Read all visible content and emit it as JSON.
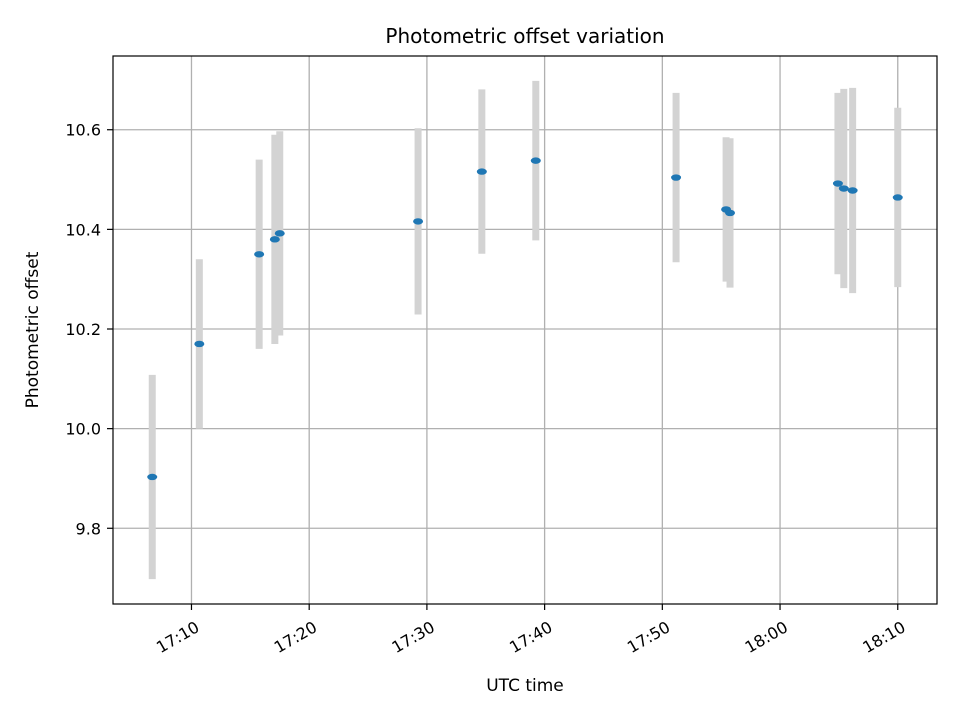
{
  "chart_data": {
    "type": "scatter",
    "title": "Photometric offset variation",
    "xlabel": "UTC time",
    "ylabel": "Photometric offset",
    "x_ticks": [
      "17:10",
      "17:20",
      "17:30",
      "17:40",
      "17:50",
      "18:00",
      "18:10"
    ],
    "x_range": [
      "17:03:20",
      "18:13:20"
    ],
    "y_ticks": [
      "9.8",
      "10.0",
      "10.2",
      "10.4",
      "10.6"
    ],
    "y_range": [
      9.648,
      10.748
    ],
    "grid": true,
    "colors": {
      "marker": "#1f77b4",
      "errorbar": "#d3d3d3",
      "grid": "#b0b0b0"
    },
    "points": [
      {
        "x": "17:06:40",
        "y": 9.903,
        "err": 0.205
      },
      {
        "x": "17:10:40",
        "y": 10.17,
        "err": 0.17
      },
      {
        "x": "17:15:45",
        "y": 10.35,
        "err": 0.19
      },
      {
        "x": "17:17:05",
        "y": 10.38,
        "err": 0.21
      },
      {
        "x": "17:17:30",
        "y": 10.392,
        "err": 0.205
      },
      {
        "x": "17:29:15",
        "y": 10.416,
        "err": 0.187
      },
      {
        "x": "17:34:40",
        "y": 10.516,
        "err": 0.165
      },
      {
        "x": "17:39:15",
        "y": 10.538,
        "err": 0.16
      },
      {
        "x": "17:51:10",
        "y": 10.504,
        "err": 0.17
      },
      {
        "x": "17:55:25",
        "y": 10.44,
        "err": 0.145
      },
      {
        "x": "17:55:45",
        "y": 10.433,
        "err": 0.15
      },
      {
        "x": "18:04:55",
        "y": 10.492,
        "err": 0.182
      },
      {
        "x": "18:05:25",
        "y": 10.482,
        "err": 0.2
      },
      {
        "x": "18:06:10",
        "y": 10.478,
        "err": 0.206
      },
      {
        "x": "18:10:00",
        "y": 10.464,
        "err": 0.18
      }
    ]
  }
}
